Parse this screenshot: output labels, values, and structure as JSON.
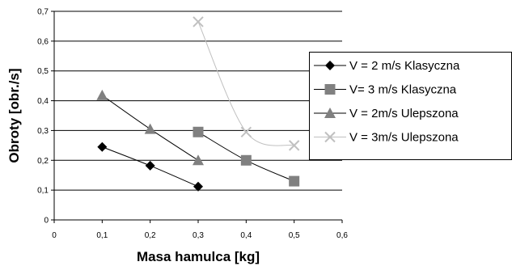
{
  "chart_data": {
    "type": "scatter",
    "title": "",
    "xlabel": "Masa hamulca [kg]",
    "ylabel": "Obroty [obr./s]",
    "xlim": [
      0,
      0.6
    ],
    "ylim": [
      0,
      0.7
    ],
    "x_ticks": [
      "0",
      "0,1",
      "0,2",
      "0,3",
      "0,4",
      "0,5",
      "0,6"
    ],
    "y_ticks": [
      "0",
      "0,1",
      "0,2",
      "0,3",
      "0,4",
      "0,5",
      "0,6",
      "0,7"
    ],
    "grid": "horizontal",
    "legend_position": "right",
    "series": [
      {
        "name": "V = 2 m/s Klasyczna",
        "marker": "diamond",
        "color": "#000000",
        "line_color": "#000000",
        "x": [
          0.1,
          0.2,
          0.3
        ],
        "y": [
          0.245,
          0.182,
          0.112
        ]
      },
      {
        "name": "V= 3 m/s Klasyczna",
        "marker": "square",
        "color": "#808080",
        "line_color": "#000000",
        "x": [
          0.3,
          0.4,
          0.5
        ],
        "y": [
          0.295,
          0.2,
          0.13
        ]
      },
      {
        "name": "V = 2m/s Ulepszona",
        "marker": "triangle",
        "color": "#808080",
        "line_color": "#000000",
        "x": [
          0.1,
          0.2,
          0.3
        ],
        "y": [
          0.418,
          0.305,
          0.2
        ]
      },
      {
        "name": "V = 3m/s Ulepszona",
        "marker": "x",
        "color": "#c0c0c0",
        "line_color": "#c0c0c0",
        "x": [
          0.3,
          0.4,
          0.5
        ],
        "y": [
          0.665,
          0.295,
          0.25
        ]
      }
    ]
  }
}
